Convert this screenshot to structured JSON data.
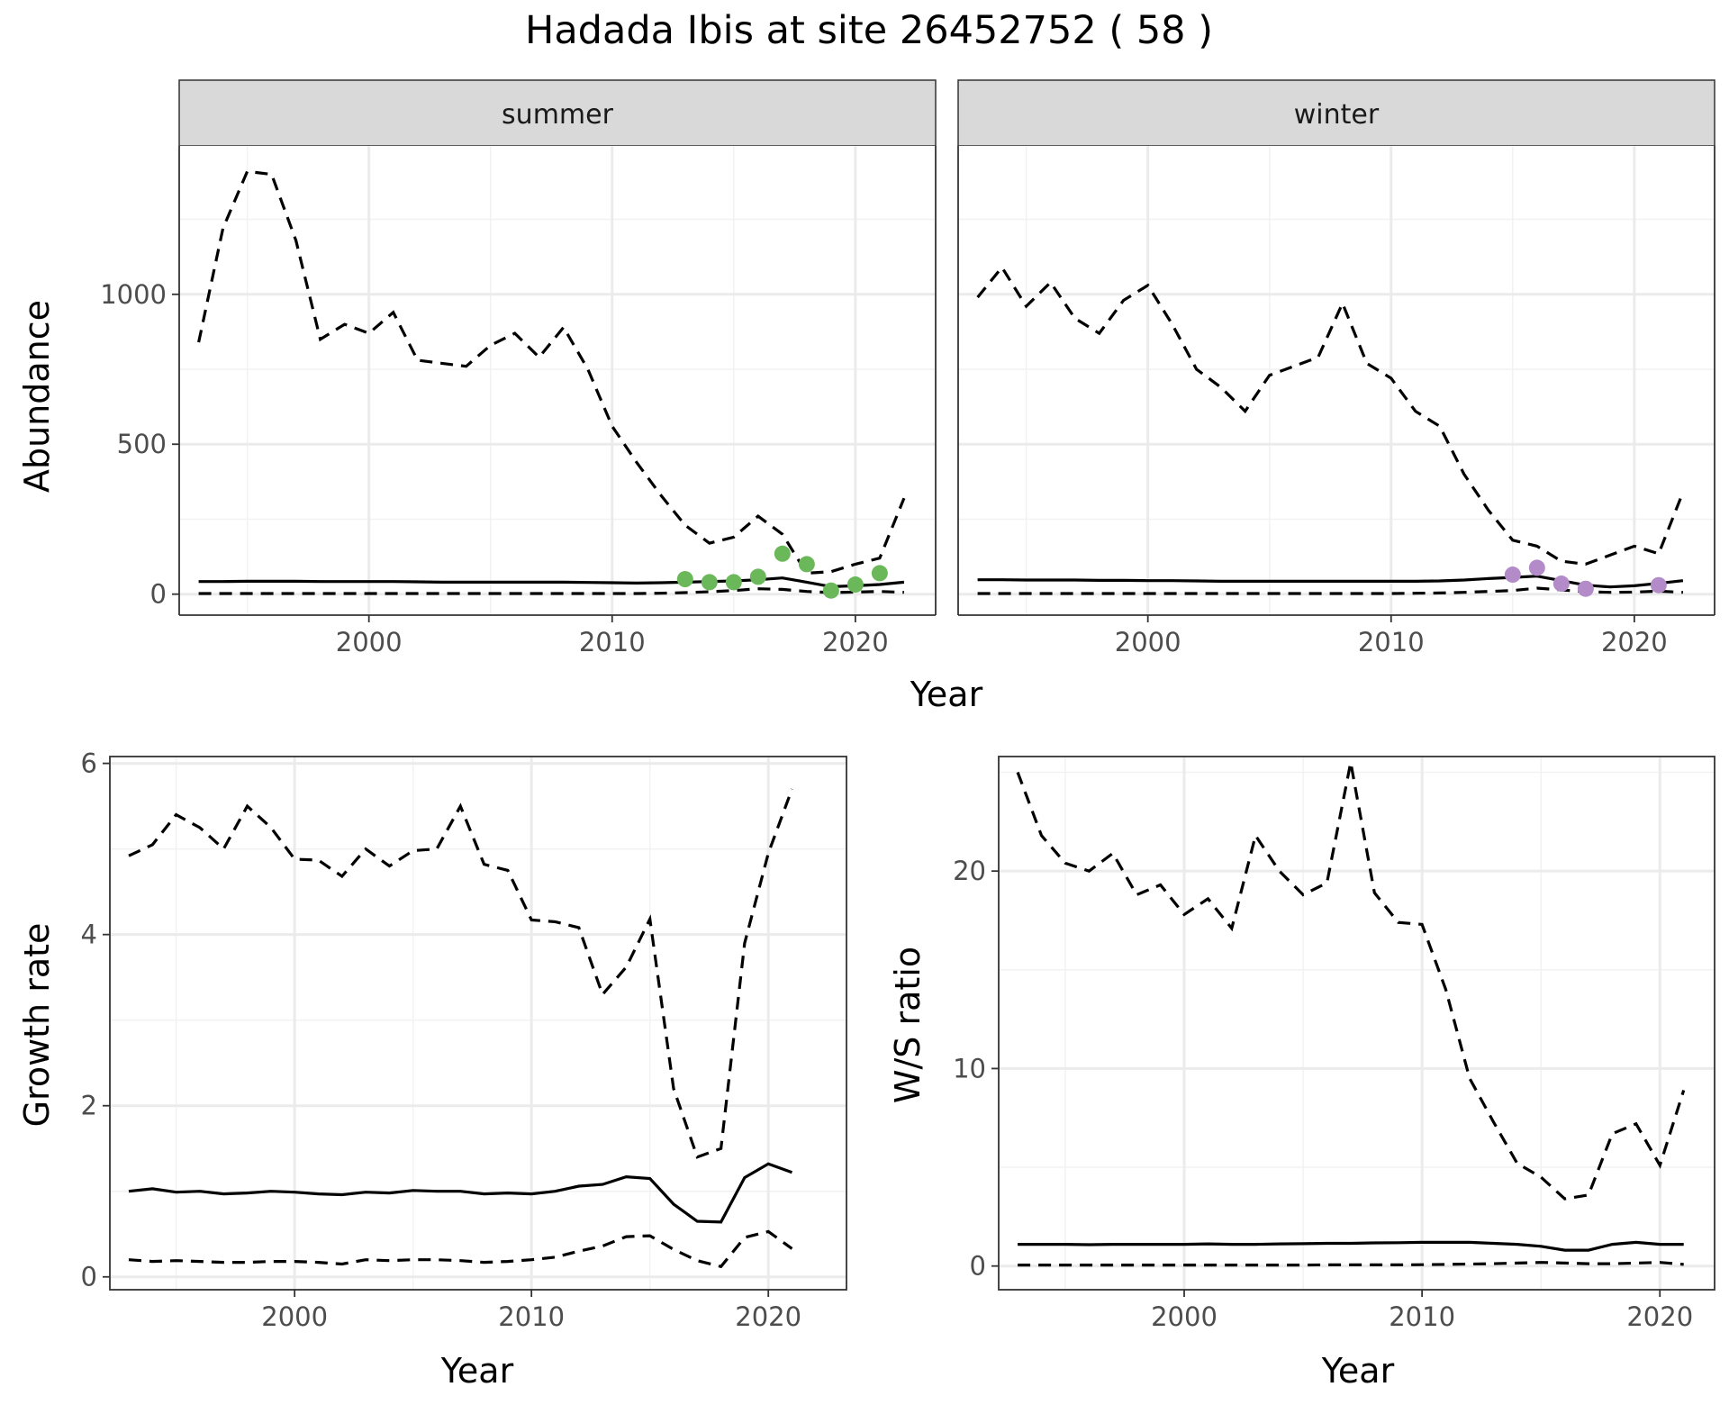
{
  "figure": {
    "title": "Hadada Ibis at site 26452752 ( 58 )"
  },
  "chart_data": [
    {
      "type": "line",
      "id": "abundance",
      "facets": [
        "summer",
        "winter"
      ],
      "xlabel": "Year",
      "ylabel": "Abundance",
      "xlim": [
        1992.2,
        2023.3
      ],
      "ylim": [
        -70,
        1495
      ],
      "xticks": [
        2000,
        2010,
        2020
      ],
      "yticks": [
        0,
        500,
        1000
      ],
      "grid": true,
      "panels": [
        {
          "strip": "summer",
          "point_color": "#6ab85a",
          "x": [
            1993,
            1994,
            1995,
            1996,
            1997,
            1998,
            1999,
            2000,
            2001,
            2002,
            2003,
            2004,
            2005,
            2006,
            2007,
            2008,
            2009,
            2010,
            2011,
            2012,
            2013,
            2014,
            2015,
            2016,
            2017,
            2018,
            2019,
            2020,
            2021,
            2022
          ],
          "mean": [
            42,
            42,
            43,
            43,
            43,
            42,
            42,
            42,
            42,
            41,
            40,
            40,
            40,
            40,
            40,
            40,
            39,
            38,
            37,
            38,
            40,
            42,
            44,
            48,
            54,
            40,
            25,
            28,
            32,
            40
          ],
          "upper": [
            840,
            1220,
            1410,
            1400,
            1180,
            850,
            900,
            870,
            940,
            780,
            770,
            760,
            830,
            870,
            790,
            890,
            750,
            560,
            440,
            330,
            230,
            170,
            190,
            260,
            200,
            70,
            75,
            100,
            120,
            320
          ],
          "lower": [
            2,
            2,
            2,
            2,
            2,
            2,
            2,
            2,
            2,
            2,
            2,
            2,
            2,
            2,
            2,
            2,
            2,
            2,
            2,
            3,
            5,
            8,
            12,
            18,
            16,
            9,
            5,
            7,
            9,
            6
          ],
          "points_x": [
            2013,
            2014,
            2015,
            2016,
            2017,
            2018,
            2019,
            2020,
            2021
          ],
          "points_y": [
            50,
            40,
            40,
            58,
            135,
            100,
            12,
            32,
            70
          ]
        },
        {
          "strip": "winter",
          "point_color": "#b28bc8",
          "x": [
            1993,
            1994,
            1995,
            1996,
            1997,
            1998,
            1999,
            2000,
            2001,
            2002,
            2003,
            2004,
            2005,
            2006,
            2007,
            2008,
            2009,
            2010,
            2011,
            2012,
            2013,
            2014,
            2015,
            2016,
            2017,
            2018,
            2019,
            2020,
            2021,
            2022
          ],
          "mean": [
            48,
            48,
            47,
            47,
            47,
            46,
            46,
            45,
            45,
            44,
            43,
            43,
            43,
            43,
            43,
            43,
            43,
            43,
            43,
            44,
            47,
            52,
            56,
            60,
            45,
            30,
            24,
            28,
            36,
            45
          ],
          "upper": [
            990,
            1090,
            960,
            1040,
            920,
            870,
            980,
            1030,
            900,
            750,
            690,
            610,
            730,
            760,
            790,
            970,
            770,
            720,
            610,
            560,
            400,
            280,
            180,
            160,
            110,
            100,
            130,
            160,
            135,
            340
          ],
          "lower": [
            2,
            2,
            2,
            2,
            2,
            2,
            2,
            2,
            2,
            2,
            2,
            2,
            2,
            2,
            2,
            2,
            2,
            2,
            3,
            4,
            6,
            9,
            12,
            20,
            14,
            8,
            6,
            7,
            10,
            6
          ],
          "points_x": [
            2015,
            2016,
            2017,
            2018,
            2021
          ],
          "points_y": [
            65,
            88,
            35,
            18,
            30
          ]
        }
      ]
    },
    {
      "type": "line",
      "id": "growth",
      "xlabel": "Year",
      "ylabel": "Growth rate",
      "xlim": [
        1992.2,
        2023.3
      ],
      "ylim": [
        -0.15,
        6.08
      ],
      "xticks": [
        2000,
        2010,
        2020
      ],
      "yticks": [
        0,
        2,
        4,
        6
      ],
      "grid": true,
      "x": [
        1993,
        1994,
        1995,
        1996,
        1997,
        1998,
        1999,
        2000,
        2001,
        2002,
        2003,
        2004,
        2005,
        2006,
        2007,
        2008,
        2009,
        2010,
        2011,
        2012,
        2013,
        2014,
        2015,
        2016,
        2017,
        2018,
        2019,
        2020,
        2021
      ],
      "mean": [
        1.0,
        1.03,
        0.99,
        1.0,
        0.97,
        0.98,
        1.0,
        0.99,
        0.97,
        0.96,
        0.99,
        0.98,
        1.01,
        1.0,
        1.0,
        0.97,
        0.98,
        0.97,
        1.0,
        1.06,
        1.08,
        1.17,
        1.15,
        0.85,
        0.65,
        0.64,
        1.16,
        1.32,
        1.22
      ],
      "upper": [
        4.92,
        5.05,
        5.4,
        5.25,
        5.0,
        5.5,
        5.25,
        4.88,
        4.87,
        4.68,
        5.0,
        4.8,
        4.98,
        5.0,
        5.5,
        4.82,
        4.75,
        4.17,
        4.15,
        4.08,
        3.3,
        3.62,
        4.18,
        2.2,
        1.4,
        1.5,
        3.9,
        4.95,
        5.7
      ],
      "lower": [
        0.2,
        0.18,
        0.19,
        0.18,
        0.17,
        0.17,
        0.18,
        0.18,
        0.17,
        0.15,
        0.2,
        0.19,
        0.2,
        0.2,
        0.19,
        0.17,
        0.18,
        0.2,
        0.23,
        0.3,
        0.36,
        0.47,
        0.48,
        0.32,
        0.19,
        0.12,
        0.46,
        0.53,
        0.33
      ]
    },
    {
      "type": "line",
      "id": "ratio",
      "xlabel": "Year",
      "ylabel": "W/S ratio",
      "xlim": [
        1992.2,
        2022.3
      ],
      "ylim": [
        -1.2,
        25.8
      ],
      "xticks": [
        2000,
        2010,
        2020
      ],
      "yticks": [
        0,
        10,
        20
      ],
      "grid": true,
      "x": [
        1993,
        1994,
        1995,
        1996,
        1997,
        1998,
        1999,
        2000,
        2001,
        2002,
        2003,
        2004,
        2005,
        2006,
        2007,
        2008,
        2009,
        2010,
        2011,
        2012,
        2013,
        2014,
        2015,
        2016,
        2017,
        2018,
        2019,
        2020,
        2021
      ],
      "mean": [
        1.1,
        1.1,
        1.1,
        1.08,
        1.1,
        1.1,
        1.1,
        1.1,
        1.12,
        1.1,
        1.1,
        1.12,
        1.13,
        1.15,
        1.15,
        1.17,
        1.18,
        1.2,
        1.2,
        1.2,
        1.15,
        1.1,
        1.0,
        0.8,
        0.8,
        1.1,
        1.2,
        1.1,
        1.1
      ],
      "upper": [
        25.0,
        21.8,
        20.4,
        20.0,
        20.9,
        18.8,
        19.3,
        17.8,
        18.6,
        17.1,
        21.8,
        20.0,
        18.8,
        19.4,
        25.5,
        18.9,
        17.4,
        17.3,
        14.0,
        9.5,
        7.3,
        5.2,
        4.5,
        3.4,
        3.6,
        6.7,
        7.2,
        5.1,
        8.9
      ],
      "lower": [
        0.05,
        0.05,
        0.05,
        0.05,
        0.05,
        0.05,
        0.05,
        0.05,
        0.05,
        0.05,
        0.05,
        0.05,
        0.05,
        0.06,
        0.06,
        0.06,
        0.06,
        0.07,
        0.08,
        0.1,
        0.12,
        0.15,
        0.18,
        0.15,
        0.12,
        0.12,
        0.15,
        0.18,
        0.08
      ]
    }
  ]
}
